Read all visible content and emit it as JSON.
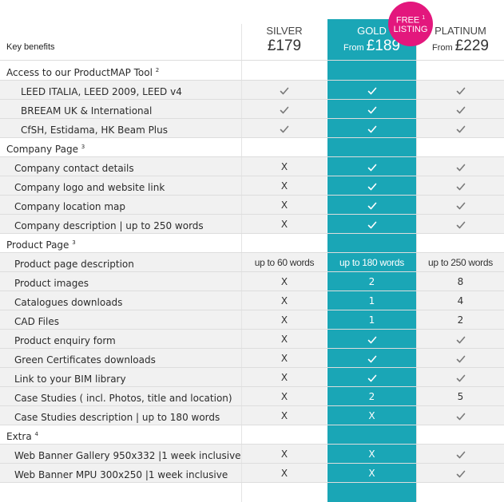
{
  "header": {
    "key_benefits": "Key benefits",
    "silver": {
      "name": "SILVER",
      "prefix": "",
      "price": "£179"
    },
    "gold": {
      "name": "GOLD",
      "prefix": "From",
      "price": "£189"
    },
    "platinum": {
      "name": "PLATINUM",
      "prefix": "From",
      "price": "£229"
    },
    "badge": {
      "line1": "FREE",
      "sup": "1",
      "line2": "LISTING"
    }
  },
  "colors": {
    "gold_band": "#1aa6b6",
    "badge": "#e3177d"
  },
  "rows": [
    {
      "type": "section",
      "label": "Access to our ProductMAP Tool",
      "sup": "2"
    },
    {
      "type": "item",
      "indent": 2,
      "label": "LEED ITALIA, LEED 2009, LEED v4",
      "silver": "check",
      "gold": "check",
      "platinum": "check"
    },
    {
      "type": "item",
      "indent": 2,
      "label": "BREEAM UK & International",
      "silver": "check",
      "gold": "check",
      "platinum": "check"
    },
    {
      "type": "item",
      "indent": 2,
      "label": "CfSH, Estidama, HK Beam Plus",
      "silver": "check",
      "gold": "check",
      "platinum": "check"
    },
    {
      "type": "section",
      "label": "Company Page",
      "sup": "3"
    },
    {
      "type": "item",
      "indent": 1,
      "label": "Company contact details",
      "silver": "X",
      "gold": "check",
      "platinum": "check"
    },
    {
      "type": "item",
      "indent": 1,
      "label": "Company logo and website link",
      "silver": "X",
      "gold": "check",
      "platinum": "check"
    },
    {
      "type": "item",
      "indent": 1,
      "label": "Company location map",
      "silver": "X",
      "gold": "check",
      "platinum": "check"
    },
    {
      "type": "item",
      "indent": 1,
      "label": "Company description | up to 250 words",
      "silver": "X",
      "gold": "check",
      "platinum": "check"
    },
    {
      "type": "section",
      "label": "Product Page",
      "sup": "3"
    },
    {
      "type": "item",
      "indent": 1,
      "label": "Product page description",
      "silver": "up to 60 words",
      "gold": "up to 180 words",
      "platinum": "up to 250 words"
    },
    {
      "type": "item",
      "indent": 1,
      "label": "Product images",
      "silver": "X",
      "gold": "2",
      "platinum": "8"
    },
    {
      "type": "item",
      "indent": 1,
      "label": "Catalogues downloads",
      "silver": "X",
      "gold": "1",
      "platinum": "4"
    },
    {
      "type": "item",
      "indent": 1,
      "label": "CAD Files",
      "silver": "X",
      "gold": "1",
      "platinum": "2"
    },
    {
      "type": "item",
      "indent": 1,
      "label": "Product enquiry form",
      "silver": "X",
      "gold": "check",
      "platinum": "check"
    },
    {
      "type": "item",
      "indent": 1,
      "label": "Green Certificates downloads",
      "silver": "X",
      "gold": "check",
      "platinum": "check"
    },
    {
      "type": "item",
      "indent": 1,
      "label": "Link to your BIM library",
      "silver": "X",
      "gold": "check",
      "platinum": "check"
    },
    {
      "type": "item",
      "indent": 1,
      "label": "Case Studies ( incl. Photos, title and location)",
      "silver": "X",
      "gold": "2",
      "platinum": "5"
    },
    {
      "type": "item",
      "indent": 1,
      "label": "Case Studies description | up to 180 words",
      "silver": "X",
      "gold": "X",
      "platinum": "check"
    },
    {
      "type": "section",
      "label": "Extra",
      "sup": "4"
    },
    {
      "type": "item",
      "indent": 1,
      "label": "Web Banner Gallery 950x332 |1 week inclusive",
      "silver": "X",
      "gold": "X",
      "platinum": "check"
    },
    {
      "type": "item",
      "indent": 1,
      "label": "Web Banner  MPU  300x250 |1 week inclusive",
      "silver": "X",
      "gold": "X",
      "platinum": "check"
    }
  ]
}
